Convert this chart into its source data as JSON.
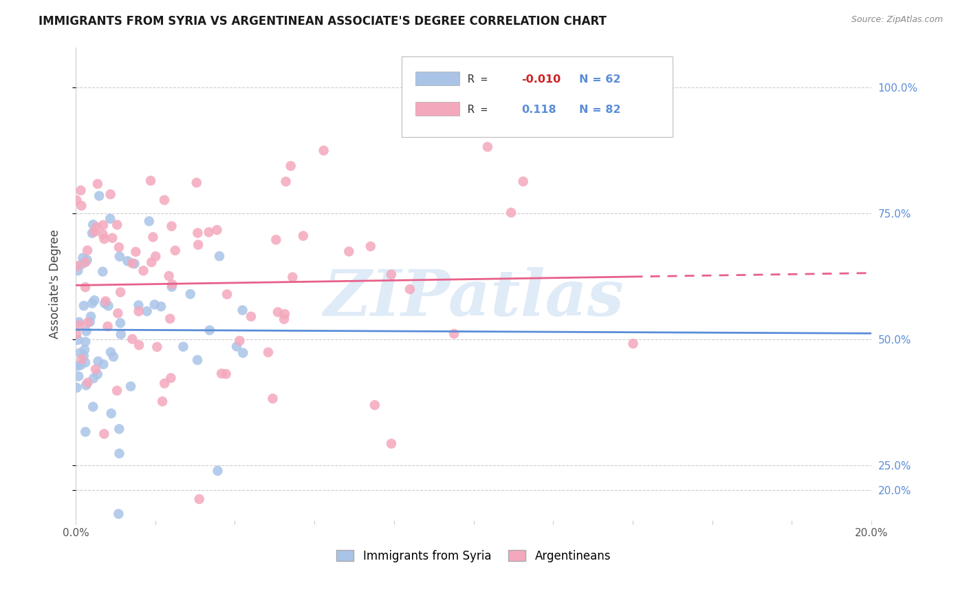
{
  "title": "IMMIGRANTS FROM SYRIA VS ARGENTINEAN ASSOCIATE'S DEGREE CORRELATION CHART",
  "source": "Source: ZipAtlas.com",
  "ylabel": "Associate's Degree",
  "r_syria": -0.01,
  "n_syria": 62,
  "r_arg": 0.118,
  "n_arg": 82,
  "background_color": "#ffffff",
  "syria_color": "#aac4e8",
  "arg_color": "#f4a8bc",
  "syria_line_color": "#5b8dd9",
  "arg_line_color": "#e8608a",
  "grid_color": "#cccccc",
  "ytick_vals": [
    0.2,
    0.25,
    0.5,
    0.75,
    1.0
  ],
  "ytick_labels": [
    "20.0%",
    "25.0%",
    "50.0%",
    "75.0%",
    "100.0%"
  ],
  "xlim": [
    0.0,
    0.2
  ],
  "ylim": [
    0.14,
    1.08
  ],
  "xmin_label": "0.0%",
  "xmax_label": "20.0%",
  "watermark_text": "ZIPatlas",
  "legend_r1": "R = ",
  "legend_v1": "-0.010",
  "legend_n1": "N = 62",
  "legend_r2": "R =   ",
  "legend_v2": "0.118",
  "legend_n2": "N = 82",
  "legend_label1": "Immigrants from Syria",
  "legend_label2": "Argentineans",
  "syria_seed": 42,
  "arg_seed": 99
}
